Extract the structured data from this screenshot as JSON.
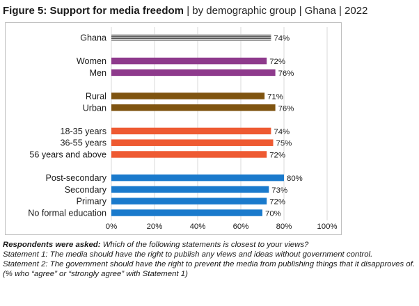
{
  "figure": {
    "title_bold": "Figure 5: Support for media freedom",
    "title_rest": " | by demographic group | Ghana | 2022"
  },
  "notes": {
    "lead": "Respondents were asked:",
    "question": " Which of the following statements is closest to your views?",
    "statement1": "Statement 1: The media should have the right to publish any views and ideas without government control.",
    "statement2": "Statement 2: The government should have the right to prevent the media from publishing things that it disapproves of.",
    "footnote": "(% who “agree” or “strongly agree” with Statement 1)"
  },
  "chart_data": {
    "type": "bar",
    "orientation": "horizontal",
    "xlim": [
      0,
      100
    ],
    "ticks": [
      {
        "value": 0,
        "label": "0%"
      },
      {
        "value": 20,
        "label": "20%"
      },
      {
        "value": 40,
        "label": "40%"
      },
      {
        "value": 60,
        "label": "60%"
      },
      {
        "value": 80,
        "label": "80%"
      },
      {
        "value": 100,
        "label": "100%"
      }
    ],
    "grid": true,
    "groups": [
      {
        "color": "#3a3a3a",
        "pattern": "striped",
        "items": [
          {
            "label": "Ghana",
            "value": 74,
            "value_label": "74%"
          }
        ]
      },
      {
        "color": "#8e3a8c",
        "items": [
          {
            "label": "Women",
            "value": 72,
            "value_label": "72%"
          },
          {
            "label": "Men",
            "value": 76,
            "value_label": "76%"
          }
        ]
      },
      {
        "color": "#7f5410",
        "items": [
          {
            "label": "Rural",
            "value": 71,
            "value_label": "71%"
          },
          {
            "label": "Urban",
            "value": 76,
            "value_label": "76%"
          }
        ]
      },
      {
        "color": "#ee5a32",
        "items": [
          {
            "label": "18-35 years",
            "value": 74,
            "value_label": "74%"
          },
          {
            "label": "36-55 years",
            "value": 75,
            "value_label": "75%"
          },
          {
            "label": "56 years and above",
            "value": 72,
            "value_label": "72%"
          }
        ]
      },
      {
        "color": "#1a7acc",
        "items": [
          {
            "label": "Post-secondary",
            "value": 80,
            "value_label": "80%"
          },
          {
            "label": "Secondary",
            "value": 73,
            "value_label": "73%"
          },
          {
            "label": "Primary",
            "value": 72,
            "value_label": "72%"
          },
          {
            "label": "No formal education",
            "value": 70,
            "value_label": "70%"
          }
        ]
      }
    ]
  }
}
